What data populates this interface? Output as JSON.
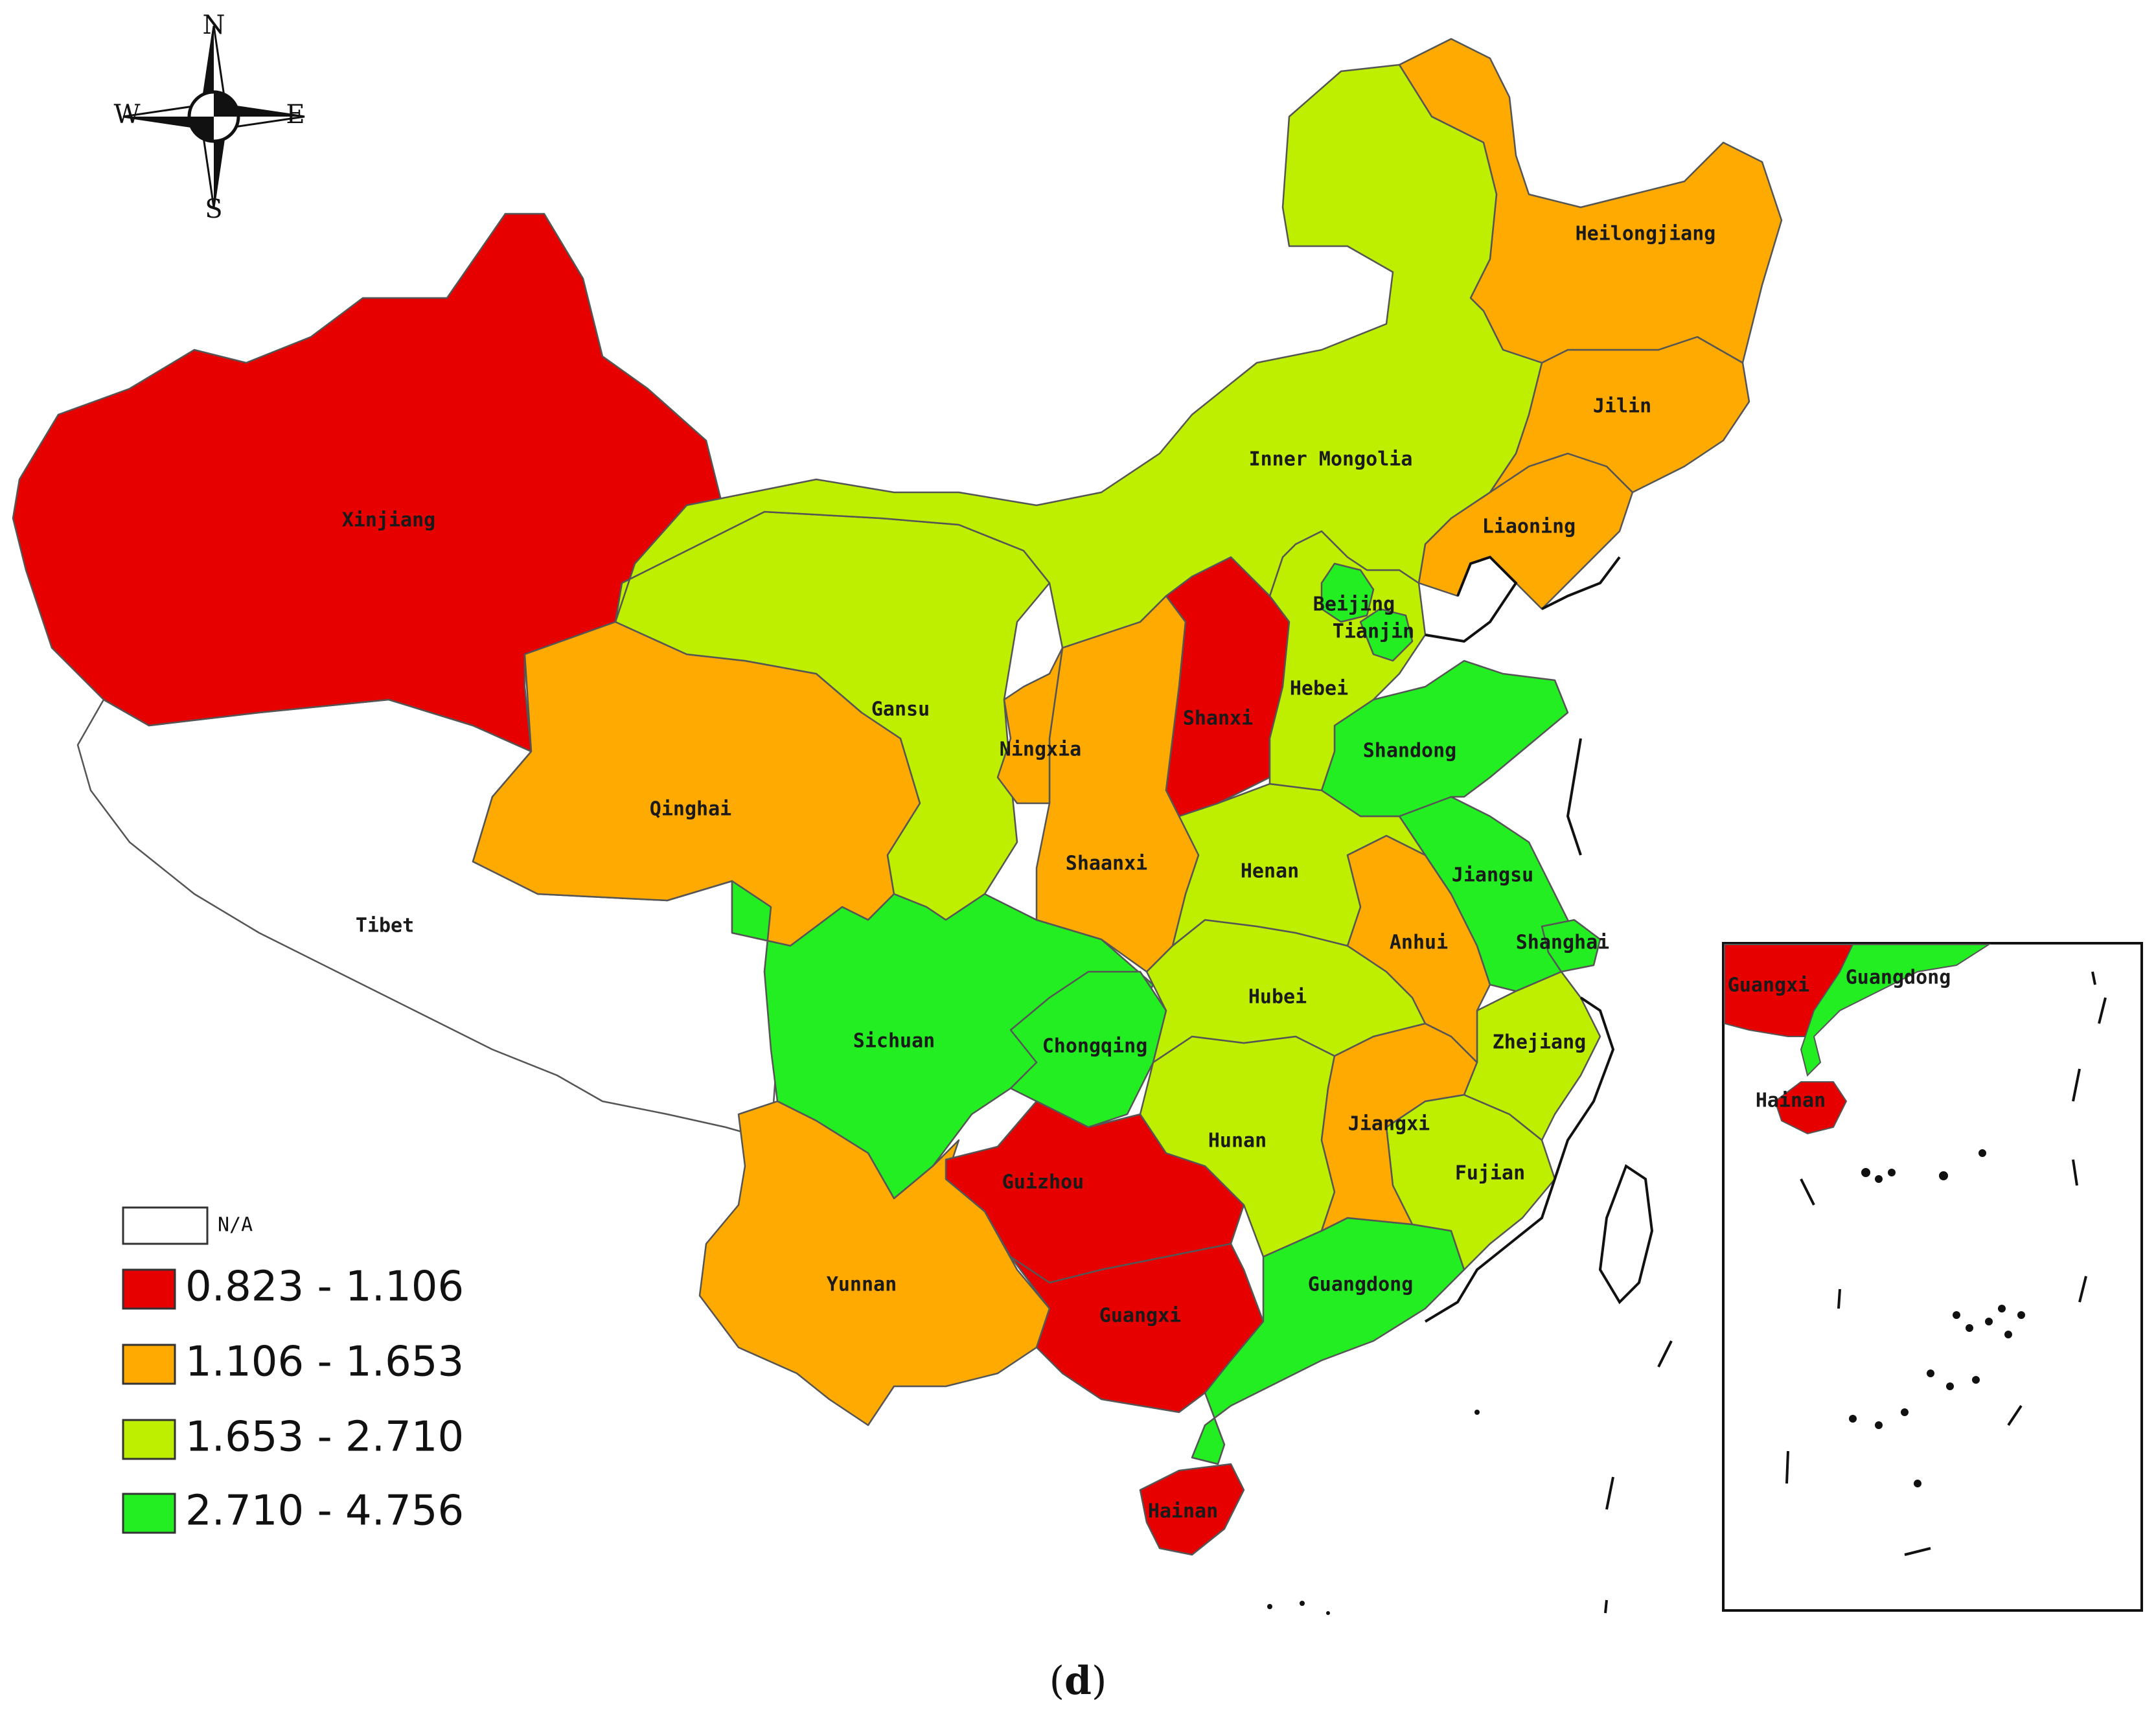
{
  "colors": {
    "na": "#ffffff",
    "c1": "#e60000",
    "c2": "#ffaa00",
    "c3": "#bfef00",
    "c4": "#22ee22"
  },
  "compass": {
    "icon": "compass-rose-icon",
    "north": "N",
    "south": "S",
    "east": "E",
    "west": "W"
  },
  "legend": {
    "items": [
      {
        "label": "N/A",
        "color": "#ffffff"
      },
      {
        "label": "0.823 - 1.106",
        "color": "#e60000"
      },
      {
        "label": "1.106 - 1.653",
        "color": "#ffaa00"
      },
      {
        "label": "1.653 - 2.710",
        "color": "#bfef00"
      },
      {
        "label": "2.710 - 4.756",
        "color": "#22ee22"
      }
    ]
  },
  "provinces": {
    "xinjiang": {
      "name": "Xinjiang",
      "class": "0.823 - 1.106"
    },
    "tibet": {
      "name": "Tibet",
      "class": "N/A"
    },
    "qinghai": {
      "name": "Qinghai",
      "class": "1.106 - 1.653"
    },
    "gansu": {
      "name": "Gansu",
      "class": "1.653 - 2.710"
    },
    "inner_mongolia": {
      "name": "Inner Mongolia",
      "class": "1.653 - 2.710"
    },
    "heilongjiang": {
      "name": "Heilongjiang",
      "class": "1.106 - 1.653"
    },
    "jilin": {
      "name": "Jilin",
      "class": "1.106 - 1.653"
    },
    "liaoning": {
      "name": "Liaoning",
      "class": "1.106 - 1.653"
    },
    "beijing": {
      "name": "Beijing",
      "class": "2.710 - 4.756"
    },
    "tianjin": {
      "name": "Tianjin",
      "class": "2.710 - 4.756"
    },
    "hebei": {
      "name": "Hebei",
      "class": "1.653 - 2.710"
    },
    "shanxi": {
      "name": "Shanxi",
      "class": "0.823 - 1.106"
    },
    "ningxia": {
      "name": "Ningxia",
      "class": "1.106 - 1.653"
    },
    "shaanxi": {
      "name": "Shaanxi",
      "class": "1.106 - 1.653"
    },
    "shandong": {
      "name": "Shandong",
      "class": "2.710 - 4.756"
    },
    "henan": {
      "name": "Henan",
      "class": "1.653 - 2.710"
    },
    "jiangsu": {
      "name": "Jiangsu",
      "class": "2.710 - 4.756"
    },
    "shanghai": {
      "name": "Shanghai",
      "class": "2.710 - 4.756"
    },
    "anhui": {
      "name": "Anhui",
      "class": "1.106 - 1.653"
    },
    "hubei": {
      "name": "Hubei",
      "class": "1.653 - 2.710"
    },
    "sichuan": {
      "name": "Sichuan",
      "class": "2.710 - 4.756"
    },
    "chongqing": {
      "name": "Chongqing",
      "class": "2.710 - 4.756"
    },
    "zhejiang": {
      "name": "Zhejiang",
      "class": "1.653 - 2.710"
    },
    "hunan": {
      "name": "Hunan",
      "class": "1.653 - 2.710"
    },
    "jiangxi": {
      "name": "Jiangxi",
      "class": "1.106 - 1.653"
    },
    "fujian": {
      "name": "Fujian",
      "class": "1.653 - 2.710"
    },
    "guizhou": {
      "name": "Guizhou",
      "class": "0.823 - 1.106"
    },
    "yunnan": {
      "name": "Yunnan",
      "class": "1.106 - 1.653"
    },
    "guangxi": {
      "name": "Guangxi",
      "class": "0.823 - 1.106"
    },
    "guangdong": {
      "name": "Guangdong",
      "class": "2.710 - 4.756"
    },
    "hainan": {
      "name": "Hainan",
      "class": "0.823 - 1.106"
    }
  },
  "inset": {
    "guangxi": "Guangxi",
    "guangdong": "Guangdong",
    "hainan": "Hainan"
  },
  "caption": {
    "open": "(",
    "letter": "d",
    "close": ")"
  }
}
